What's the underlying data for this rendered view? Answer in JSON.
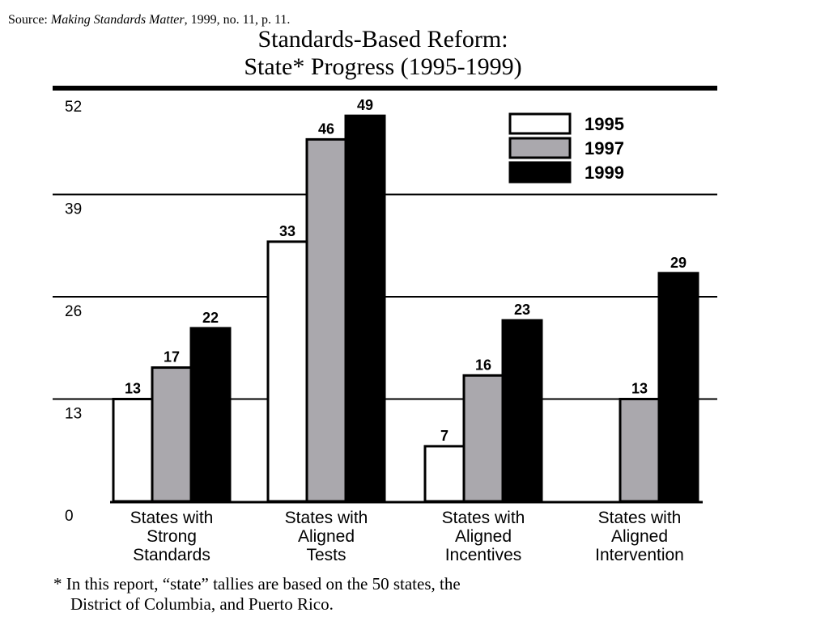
{
  "source": {
    "prefix": "Source: ",
    "publication": "Making Standards Matter",
    "suffix": ", 1999, no. 11, p. 11."
  },
  "chart_data": {
    "type": "bar",
    "title": "Standards-Based Reform:",
    "subtitle": "State* Progress (1995-1999)",
    "xlabel": "",
    "ylabel": "",
    "ylim": [
      0,
      52
    ],
    "yticks": [
      "0",
      "13",
      "26",
      "39",
      "52"
    ],
    "grid": true,
    "legend_position": "top-right",
    "categories": [
      [
        "States with",
        "Strong",
        "Standards"
      ],
      [
        "States with",
        "Aligned",
        "Tests"
      ],
      [
        "States with",
        "Aligned",
        "Incentives"
      ],
      [
        "States with",
        "Aligned",
        "Intervention"
      ]
    ],
    "series": [
      {
        "name": "1995",
        "color": "#ffffff",
        "values": [
          13,
          33,
          7,
          null
        ]
      },
      {
        "name": "1997",
        "color": "#aaa8ad",
        "values": [
          17,
          46,
          16,
          13
        ]
      },
      {
        "name": "1999",
        "color": "#000000",
        "values": [
          22,
          49,
          23,
          29
        ]
      }
    ],
    "footnote": [
      "* In this report, “state” tallies are based on the 50 states, the",
      "District of Columbia, and Puerto Rico."
    ]
  }
}
